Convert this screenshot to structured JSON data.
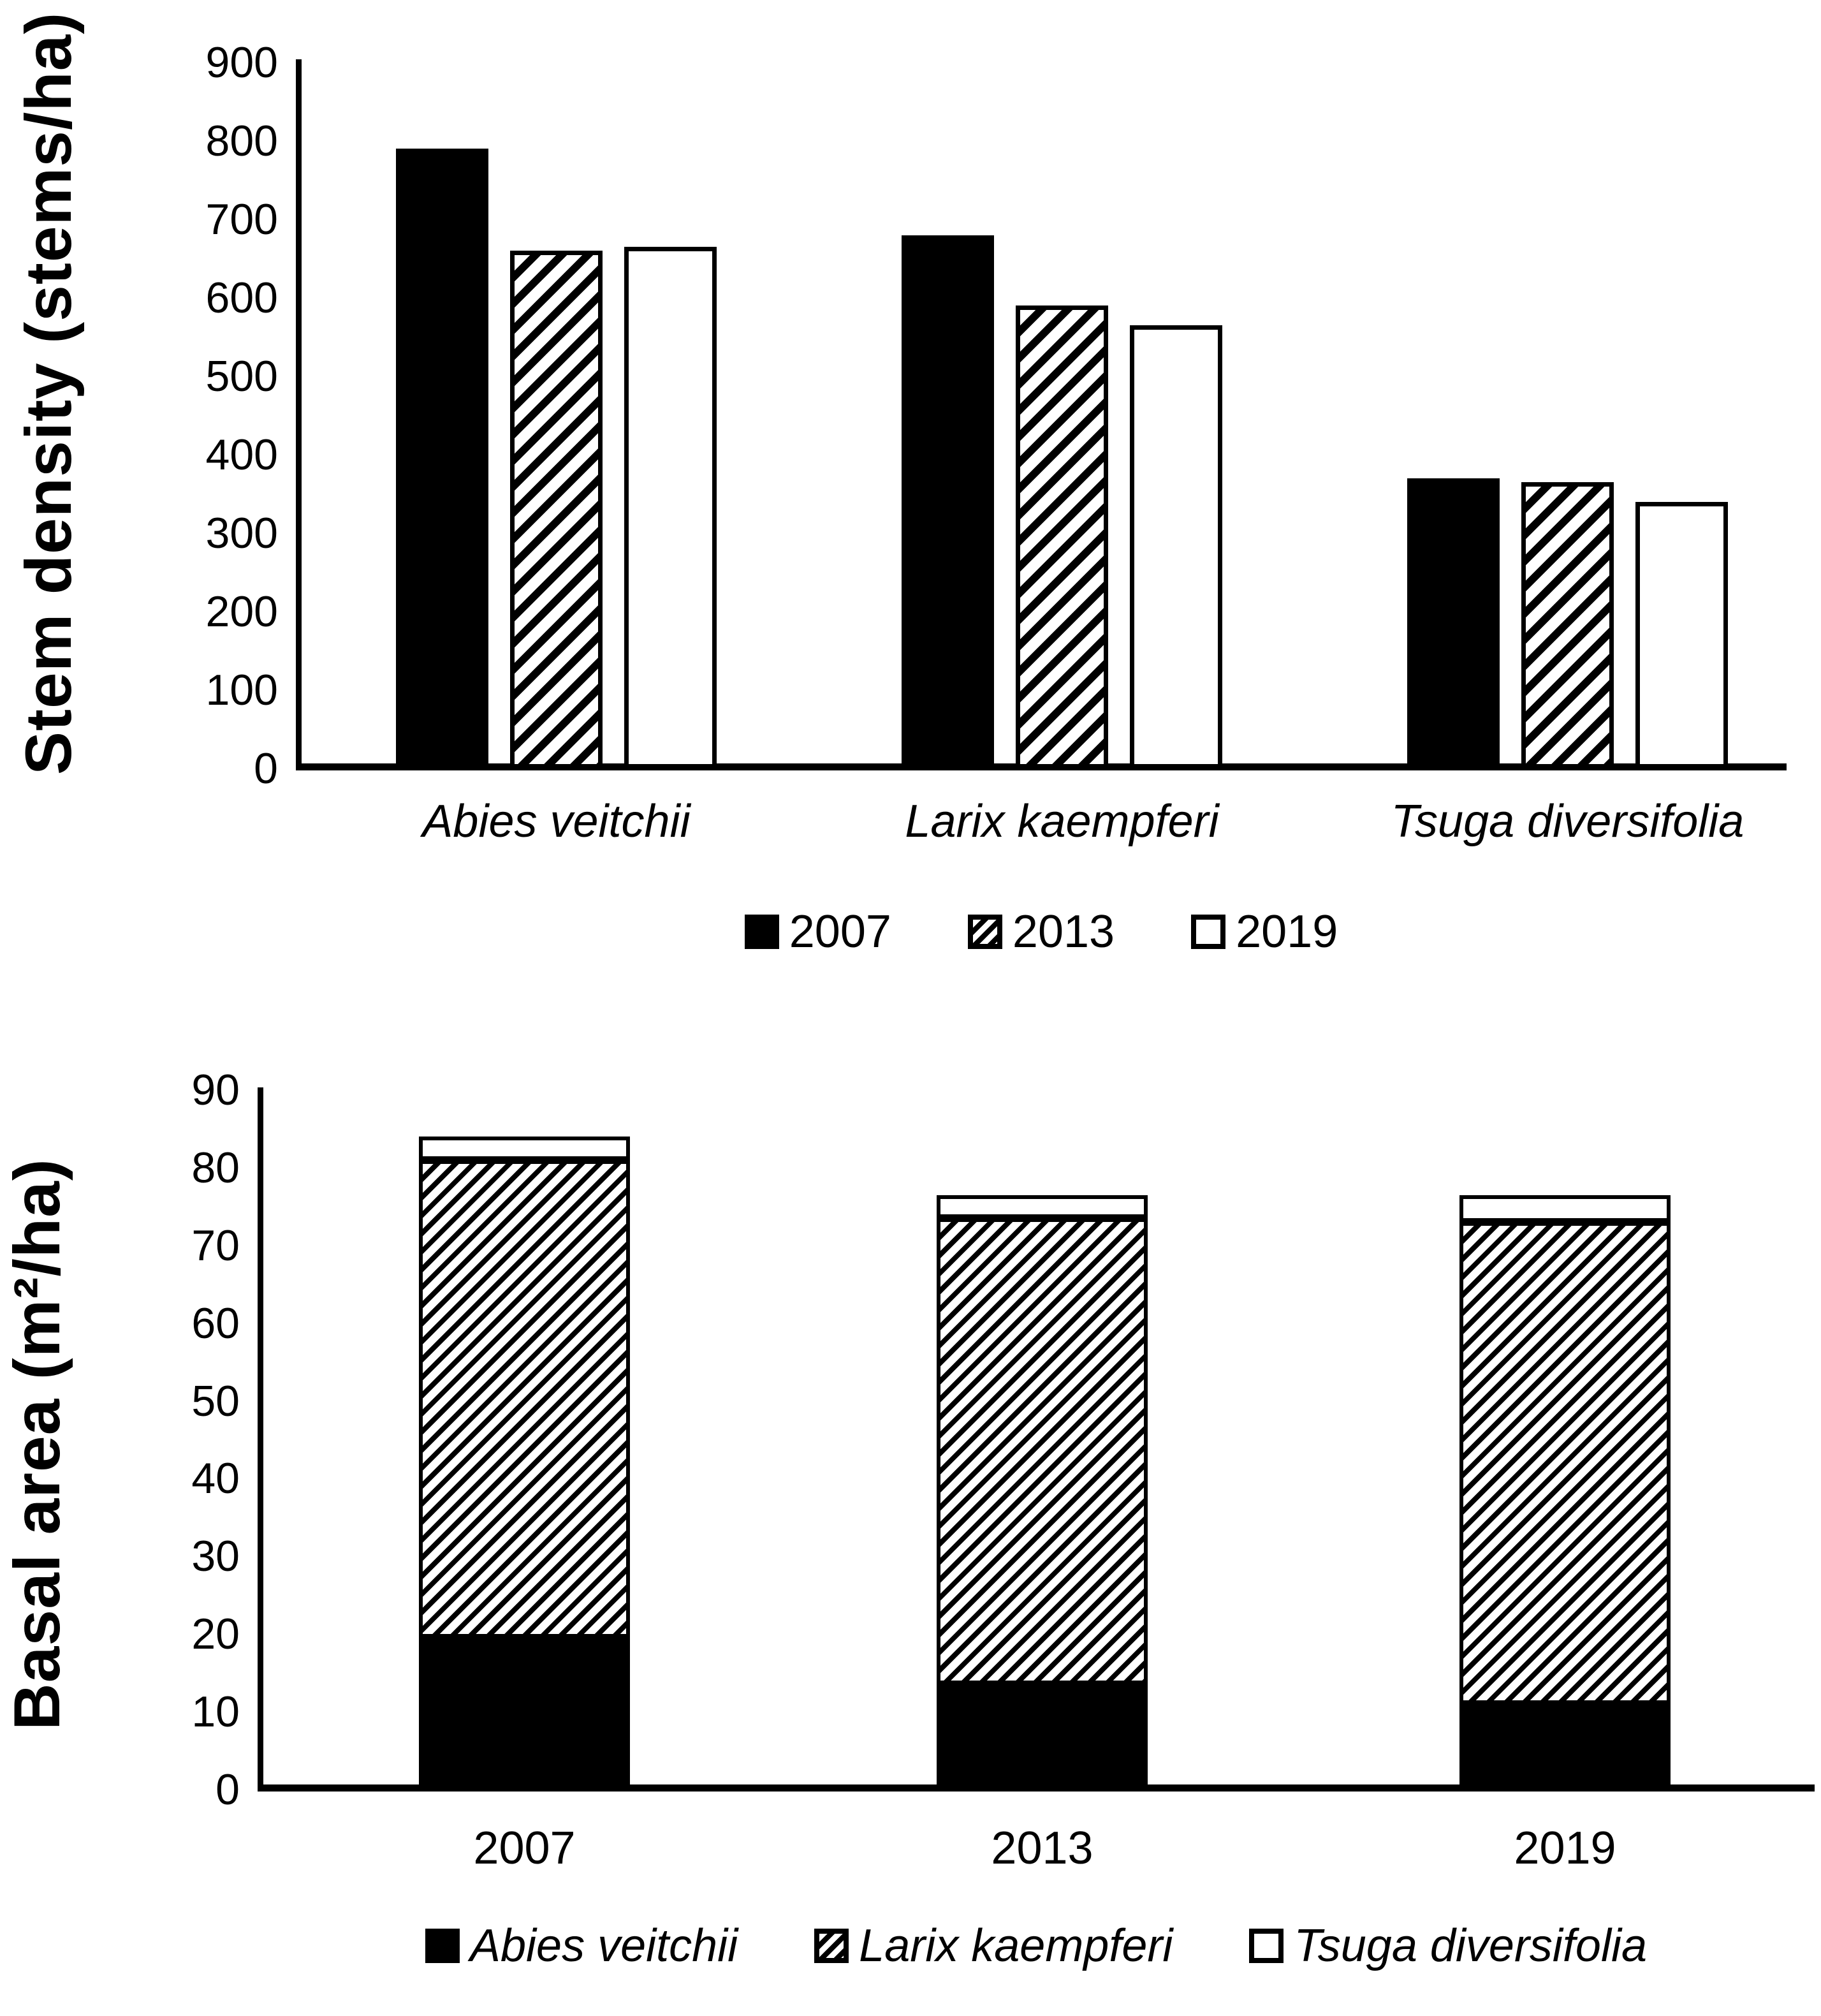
{
  "figure": {
    "background": "#ffffff",
    "ink_color": "#000000"
  },
  "chart_data": [
    {
      "type": "bar",
      "subtype": "grouped",
      "ylabel": "Stem density (stems/ha)",
      "xlabel": "",
      "ylim": [
        0,
        900
      ],
      "y_ticks": [
        900,
        800,
        700,
        600,
        500,
        400,
        300,
        200,
        100,
        0
      ],
      "grid": false,
      "legend_position": "bottom",
      "categories": [
        "Abies veitchii",
        "Larix kaempferi",
        "Tsuga diversifolia"
      ],
      "series": [
        {
          "name": "2007",
          "style": "solid-black",
          "values": [
            790,
            680,
            370
          ]
        },
        {
          "name": "2013",
          "style": "hatched",
          "values": [
            660,
            590,
            365
          ]
        },
        {
          "name": "2019",
          "style": "white",
          "values": [
            665,
            565,
            340
          ]
        }
      ],
      "legend_labels": [
        "2007",
        "2013",
        "2019"
      ],
      "legend_italic": false,
      "category_labels_italic": true
    },
    {
      "type": "bar",
      "subtype": "stacked",
      "ylabel": "Basal area (m²/ha)",
      "xlabel": "",
      "ylim": [
        0,
        90
      ],
      "y_ticks": [
        90,
        80,
        70,
        60,
        50,
        40,
        30,
        20,
        10,
        0
      ],
      "grid": false,
      "legend_position": "bottom",
      "categories": [
        "2007",
        "2013",
        "2019"
      ],
      "series": [
        {
          "name": "Abies veitchii",
          "style": "solid-black",
          "values": [
            19.5,
            13.5,
            11
          ]
        },
        {
          "name": "Larix kaempferi",
          "style": "hatched",
          "values": [
            61.5,
            60,
            62
          ]
        },
        {
          "name": "Tsuga diversifolia",
          "style": "white",
          "values": [
            3,
            3,
            3.5
          ]
        }
      ],
      "stack_totals": [
        84,
        76.5,
        76.5
      ],
      "legend_labels": [
        "Abies veitchii",
        "Larix kaempferi",
        "Tsuga diversifolia"
      ],
      "legend_italic": true,
      "category_labels_italic": false
    }
  ]
}
